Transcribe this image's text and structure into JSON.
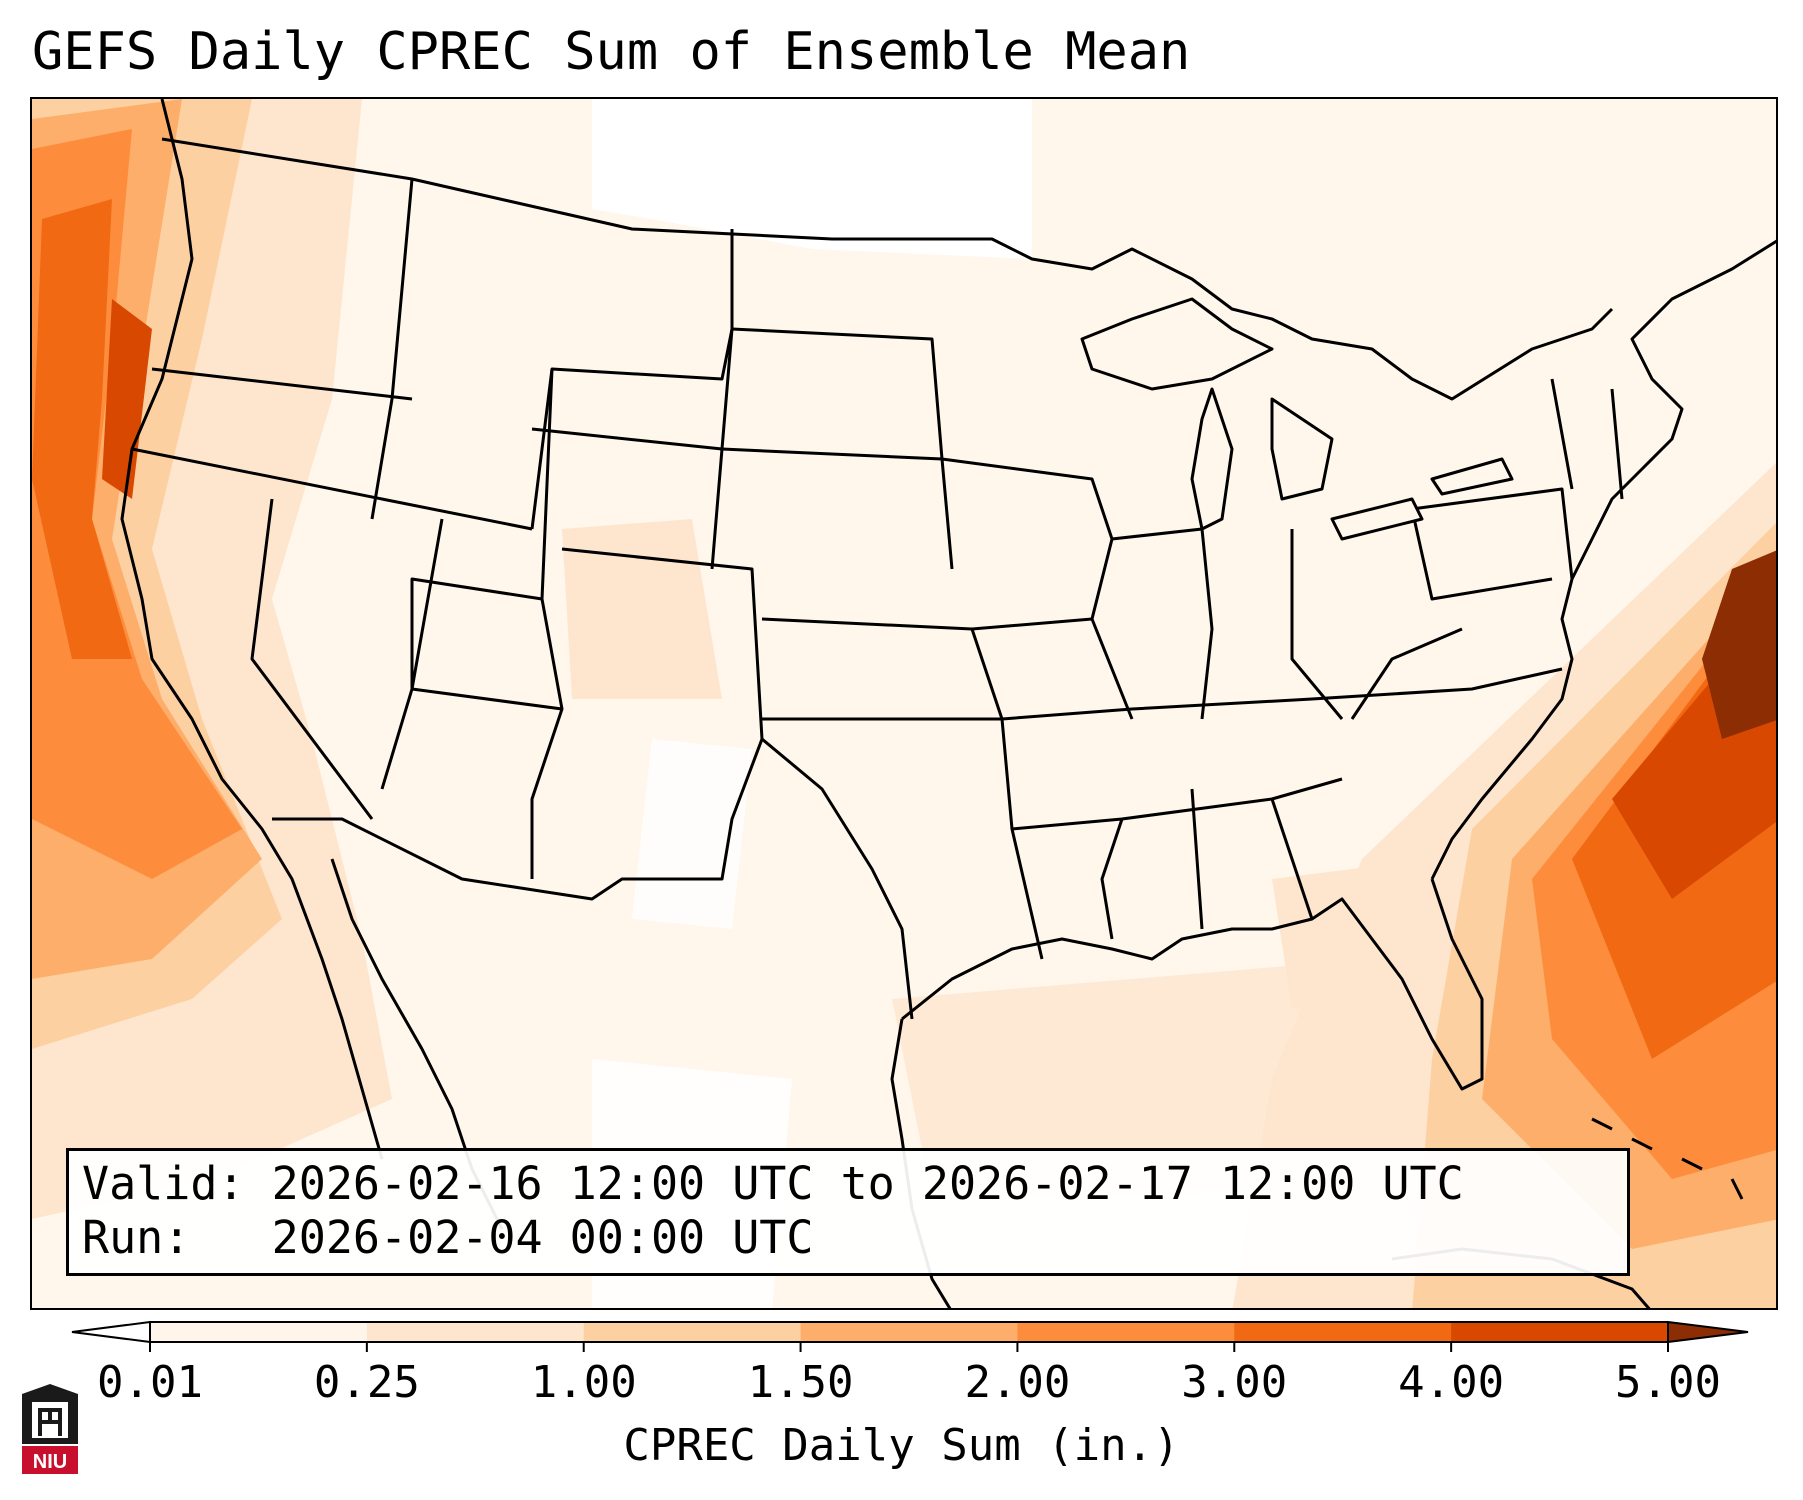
{
  "title": "GEFS Daily CPREC Sum of Ensemble Mean",
  "info": {
    "valid_line": "Valid: 2026-02-16 12:00 UTC to 2026-02-17 12:00 UTC",
    "run_line": "Run:   2026-02-04 00:00 UTC"
  },
  "colorbar": {
    "label": "CPREC Daily Sum (in.)",
    "ticks": [
      "0.01",
      "0.25",
      "1.00",
      "1.50",
      "2.00",
      "3.00",
      "4.00",
      "5.00"
    ],
    "colors": [
      "#fff5eb",
      "#fee6ce",
      "#fdd0a2",
      "#fdae6b",
      "#fd8d3c",
      "#f16913",
      "#d94801",
      "#8c2d04"
    ],
    "under_color": "#ffffff",
    "over_color": "#8c2d04"
  },
  "map": {
    "projection": "Lambert Conformal (CONUS)",
    "field": "CPREC daily sum, ensemble mean",
    "features": [
      "coastlines",
      "state-borders",
      "country-borders",
      "great-lakes"
    ],
    "max_region": "Atlantic off Mid-Atlantic coast",
    "secondary_max_region": "Pacific off California/Oregon coast"
  },
  "logo": {
    "text": "NIU",
    "color": "#c8102e"
  }
}
